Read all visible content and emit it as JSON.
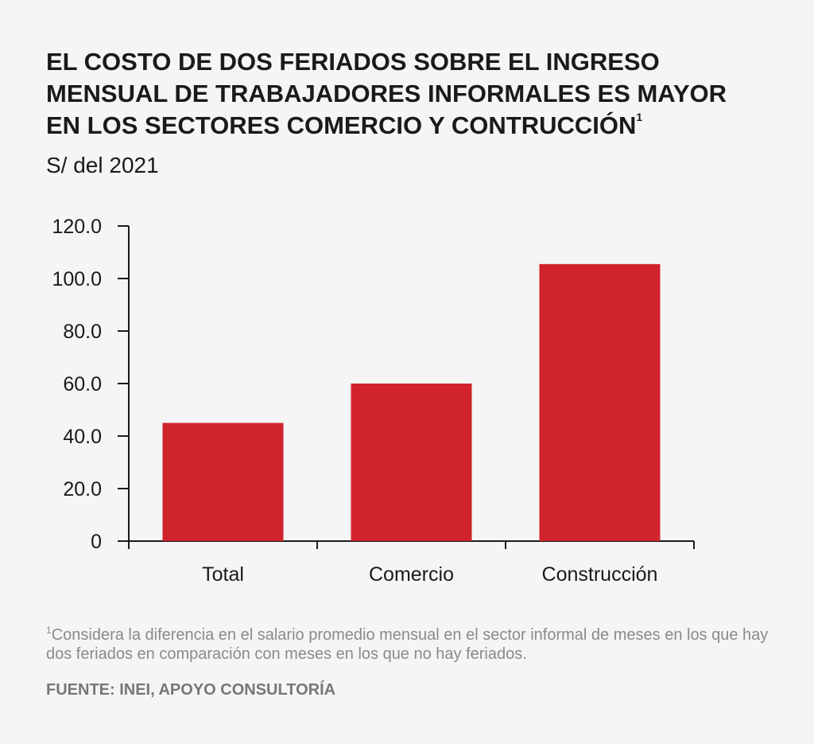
{
  "title": {
    "lines": [
      "EL COSTO DE DOS FERIADOS SOBRE EL INGRESO",
      "MENSUAL DE TRABAJADORES INFORMALES ES MAYOR",
      "EN LOS SECTORES  COMERCIO Y CONTRUCCIÓN"
    ],
    "superscript": "1"
  },
  "subtitle": "S/ del 2021",
  "footnote": {
    "marker": "1",
    "text": "Considera la diferencia en el salario promedio mensual en el sector informal de meses en los que hay dos feriados en comparación con meses en los que no hay feriados."
  },
  "source": "FUENTE: INEI, APOYO CONSULTORÍA",
  "colors": {
    "bar": "#d0232b",
    "axis": "#1a1a1a",
    "background": "#f5f5f5"
  },
  "chart_data": {
    "type": "bar",
    "categories": [
      "Total",
      "Comercio",
      "Construcción"
    ],
    "values": [
      45.0,
      60.0,
      105.5
    ],
    "ylim": [
      0,
      120
    ],
    "yticks": [
      "0",
      "20.0",
      "40.0",
      "60.0",
      "80.0",
      "100.0",
      "120.0"
    ],
    "ytick_values": [
      0,
      20,
      40,
      60,
      80,
      100,
      120
    ],
    "grid": false,
    "legend": "none"
  }
}
